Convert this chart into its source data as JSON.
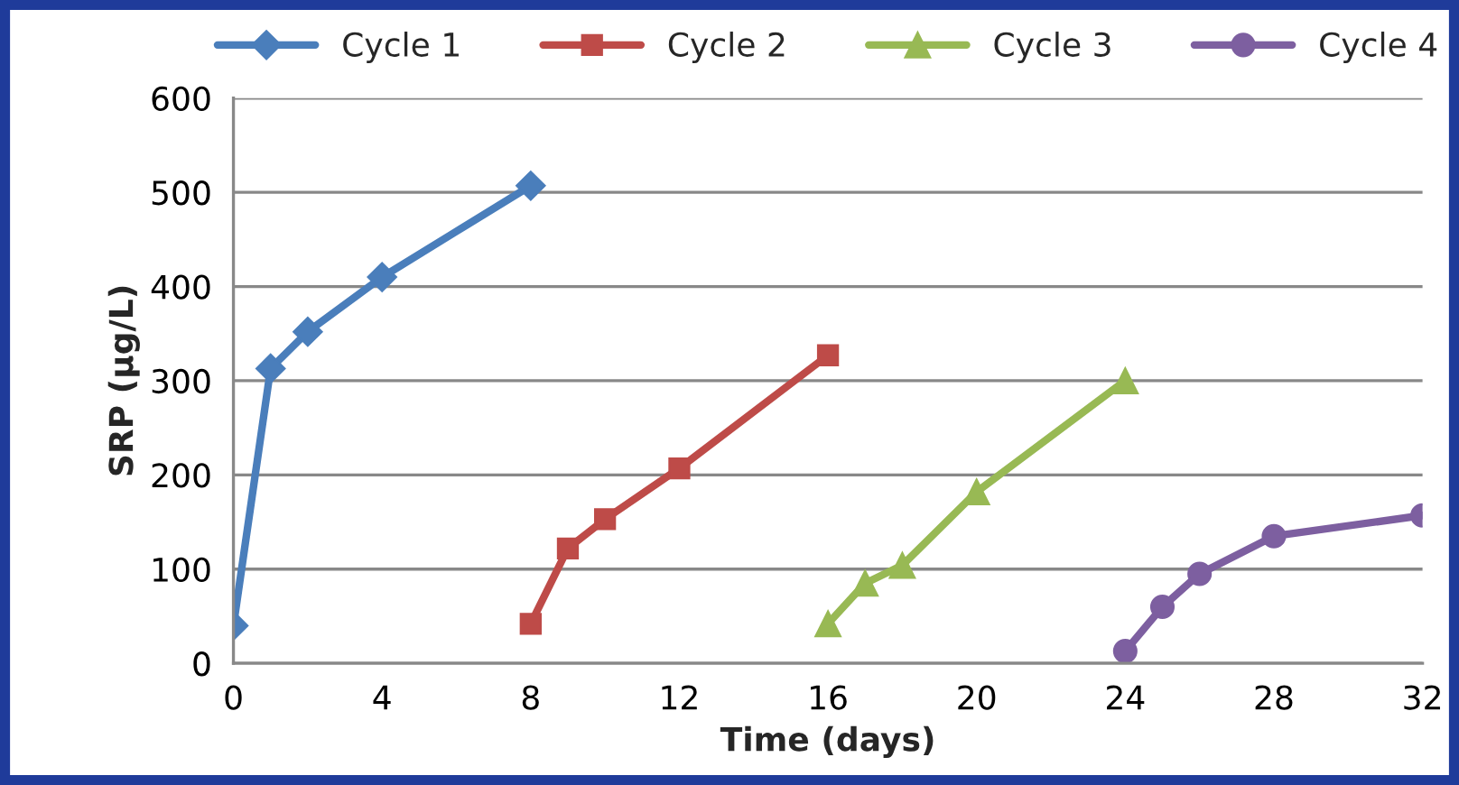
{
  "chart_data": {
    "type": "line",
    "xlabel": "Time (days)",
    "ylabel": "SRP (µg/L)",
    "xlim": [
      0,
      32
    ],
    "xticks": [
      0,
      4,
      8,
      12,
      16,
      20,
      24,
      28,
      32
    ],
    "ylim": [
      0,
      600
    ],
    "yticks": [
      0,
      100,
      200,
      300,
      400,
      500,
      600
    ],
    "grid": "y",
    "legend": "top",
    "line_style": "solid",
    "series": [
      {
        "name": "Cycle 1",
        "color": "#4a7ebb",
        "marker": "diamond",
        "x": [
          0,
          1,
          2,
          4,
          8
        ],
        "values": [
          40,
          313,
          352,
          410,
          507
        ]
      },
      {
        "name": "Cycle 2",
        "color": "#be4b48",
        "marker": "square",
        "x": [
          8,
          9,
          10,
          12,
          16
        ],
        "values": [
          42,
          122,
          153,
          207,
          327
        ]
      },
      {
        "name": "Cycle 3",
        "color": "#98b954",
        "marker": "triangle",
        "x": [
          16,
          17,
          18,
          20,
          24
        ],
        "values": [
          42,
          85,
          104,
          182,
          300
        ]
      },
      {
        "name": "Cycle 4",
        "color": "#7d5fa0",
        "marker": "circle",
        "x": [
          24,
          25,
          26,
          28,
          32
        ],
        "values": [
          13,
          60,
          95,
          135,
          157
        ]
      }
    ]
  }
}
